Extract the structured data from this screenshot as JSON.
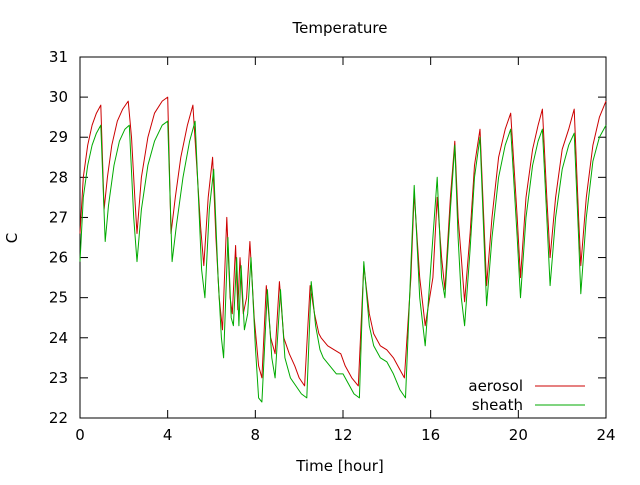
{
  "chart_data": {
    "type": "line",
    "title": "Temperature",
    "xlabel": "Time [hour]",
    "ylabel": "C",
    "xlim": [
      0,
      24
    ],
    "ylim": [
      22,
      31
    ],
    "xticks": [
      0,
      4,
      8,
      12,
      16,
      20,
      24
    ],
    "yticks": [
      22,
      23,
      24,
      25,
      26,
      27,
      28,
      29,
      30,
      31
    ],
    "grid": false,
    "legend_position": "bottom-right",
    "series": [
      {
        "name": "aerosol",
        "color": "#cc0000",
        "points": [
          [
            0.0,
            26.6
          ],
          [
            0.15,
            28.0
          ],
          [
            0.35,
            28.8
          ],
          [
            0.55,
            29.3
          ],
          [
            0.75,
            29.6
          ],
          [
            0.95,
            29.8
          ],
          [
            1.1,
            27.2
          ],
          [
            1.25,
            28.0
          ],
          [
            1.45,
            28.8
          ],
          [
            1.7,
            29.4
          ],
          [
            1.95,
            29.7
          ],
          [
            2.2,
            29.9
          ],
          [
            2.35,
            29.0
          ],
          [
            2.5,
            27.5
          ],
          [
            2.6,
            26.6
          ],
          [
            2.8,
            28.0
          ],
          [
            3.1,
            29.0
          ],
          [
            3.4,
            29.6
          ],
          [
            3.75,
            29.9
          ],
          [
            4.0,
            30.0
          ],
          [
            4.15,
            26.6
          ],
          [
            4.35,
            27.5
          ],
          [
            4.6,
            28.5
          ],
          [
            4.9,
            29.3
          ],
          [
            5.15,
            29.8
          ],
          [
            5.5,
            26.8
          ],
          [
            5.65,
            25.8
          ],
          [
            5.85,
            27.5
          ],
          [
            6.05,
            28.5
          ],
          [
            6.2,
            26.5
          ],
          [
            6.35,
            25.0
          ],
          [
            6.5,
            24.2
          ],
          [
            6.7,
            27.0
          ],
          [
            6.85,
            25.0
          ],
          [
            6.95,
            24.6
          ],
          [
            7.1,
            26.3
          ],
          [
            7.2,
            24.7
          ],
          [
            7.3,
            26.0
          ],
          [
            7.45,
            24.6
          ],
          [
            7.6,
            25.0
          ],
          [
            7.75,
            26.4
          ],
          [
            7.95,
            24.5
          ],
          [
            8.15,
            23.3
          ],
          [
            8.3,
            23.0
          ],
          [
            8.5,
            25.3
          ],
          [
            8.7,
            24.0
          ],
          [
            8.9,
            23.6
          ],
          [
            9.1,
            25.4
          ],
          [
            9.3,
            24.0
          ],
          [
            9.55,
            23.6
          ],
          [
            9.8,
            23.3
          ],
          [
            10.0,
            23.0
          ],
          [
            10.25,
            22.8
          ],
          [
            10.5,
            25.3
          ],
          [
            10.7,
            24.6
          ],
          [
            10.9,
            24.1
          ],
          [
            11.0,
            24.0
          ],
          [
            11.3,
            23.8
          ],
          [
            11.6,
            23.7
          ],
          [
            11.9,
            23.6
          ],
          [
            12.1,
            23.3
          ],
          [
            12.4,
            23.0
          ],
          [
            12.7,
            22.8
          ],
          [
            12.95,
            25.8
          ],
          [
            13.2,
            24.6
          ],
          [
            13.4,
            24.1
          ],
          [
            13.7,
            23.8
          ],
          [
            14.0,
            23.7
          ],
          [
            14.3,
            23.5
          ],
          [
            14.6,
            23.2
          ],
          [
            14.8,
            23.0
          ],
          [
            15.1,
            25.5
          ],
          [
            15.25,
            27.6
          ],
          [
            15.5,
            25.5
          ],
          [
            15.75,
            24.3
          ],
          [
            16.1,
            25.5
          ],
          [
            16.3,
            27.5
          ],
          [
            16.5,
            26.0
          ],
          [
            16.65,
            25.2
          ],
          [
            16.9,
            27.5
          ],
          [
            17.1,
            28.9
          ],
          [
            17.25,
            27.0
          ],
          [
            17.4,
            26.0
          ],
          [
            17.55,
            24.9
          ],
          [
            17.8,
            26.6
          ],
          [
            18.0,
            28.3
          ],
          [
            18.25,
            29.2
          ],
          [
            18.55,
            25.3
          ],
          [
            18.8,
            27.0
          ],
          [
            19.1,
            28.5
          ],
          [
            19.4,
            29.2
          ],
          [
            19.65,
            29.6
          ],
          [
            19.95,
            27.0
          ],
          [
            20.1,
            25.5
          ],
          [
            20.35,
            27.5
          ],
          [
            20.65,
            28.7
          ],
          [
            20.9,
            29.3
          ],
          [
            21.1,
            29.7
          ],
          [
            21.3,
            27.5
          ],
          [
            21.45,
            26.0
          ],
          [
            21.7,
            27.5
          ],
          [
            22.0,
            28.7
          ],
          [
            22.3,
            29.2
          ],
          [
            22.55,
            29.7
          ],
          [
            22.75,
            27.0
          ],
          [
            22.85,
            25.8
          ],
          [
            23.1,
            27.5
          ],
          [
            23.4,
            28.8
          ],
          [
            23.7,
            29.5
          ],
          [
            24.0,
            29.9
          ]
        ]
      },
      {
        "name": "sheath",
        "color": "#00aa00",
        "points": [
          [
            0.0,
            25.9
          ],
          [
            0.15,
            27.5
          ],
          [
            0.35,
            28.3
          ],
          [
            0.55,
            28.8
          ],
          [
            0.75,
            29.1
          ],
          [
            0.95,
            29.3
          ],
          [
            1.15,
            26.4
          ],
          [
            1.3,
            27.3
          ],
          [
            1.55,
            28.3
          ],
          [
            1.8,
            28.9
          ],
          [
            2.05,
            29.2
          ],
          [
            2.25,
            29.3
          ],
          [
            2.45,
            27.0
          ],
          [
            2.6,
            25.9
          ],
          [
            2.8,
            27.2
          ],
          [
            3.1,
            28.3
          ],
          [
            3.4,
            28.9
          ],
          [
            3.75,
            29.3
          ],
          [
            4.0,
            29.4
          ],
          [
            4.2,
            25.9
          ],
          [
            4.4,
            26.8
          ],
          [
            4.7,
            28.0
          ],
          [
            5.0,
            28.9
          ],
          [
            5.25,
            29.4
          ],
          [
            5.55,
            25.7
          ],
          [
            5.7,
            25.0
          ],
          [
            5.9,
            27.2
          ],
          [
            6.1,
            28.2
          ],
          [
            6.3,
            25.5
          ],
          [
            6.45,
            24.0
          ],
          [
            6.55,
            23.5
          ],
          [
            6.75,
            26.5
          ],
          [
            6.9,
            24.5
          ],
          [
            7.0,
            24.3
          ],
          [
            7.15,
            26.0
          ],
          [
            7.25,
            24.3
          ],
          [
            7.35,
            25.8
          ],
          [
            7.5,
            24.2
          ],
          [
            7.65,
            24.6
          ],
          [
            7.8,
            26.0
          ],
          [
            8.0,
            23.8
          ],
          [
            8.15,
            22.5
          ],
          [
            8.3,
            22.4
          ],
          [
            8.55,
            25.2
          ],
          [
            8.75,
            23.5
          ],
          [
            8.9,
            23.0
          ],
          [
            9.15,
            25.2
          ],
          [
            9.35,
            23.5
          ],
          [
            9.6,
            23.0
          ],
          [
            9.85,
            22.8
          ],
          [
            10.1,
            22.6
          ],
          [
            10.35,
            22.5
          ],
          [
            10.55,
            25.4
          ],
          [
            10.75,
            24.3
          ],
          [
            10.95,
            23.7
          ],
          [
            11.1,
            23.5
          ],
          [
            11.4,
            23.3
          ],
          [
            11.7,
            23.1
          ],
          [
            12.0,
            23.1
          ],
          [
            12.2,
            22.9
          ],
          [
            12.5,
            22.6
          ],
          [
            12.75,
            22.5
          ],
          [
            12.95,
            25.9
          ],
          [
            13.2,
            24.3
          ],
          [
            13.4,
            23.8
          ],
          [
            13.7,
            23.5
          ],
          [
            14.0,
            23.4
          ],
          [
            14.3,
            23.1
          ],
          [
            14.6,
            22.7
          ],
          [
            14.85,
            22.5
          ],
          [
            15.1,
            25.8
          ],
          [
            15.25,
            27.8
          ],
          [
            15.5,
            25.0
          ],
          [
            15.75,
            23.8
          ],
          [
            16.1,
            26.5
          ],
          [
            16.3,
            28.0
          ],
          [
            16.5,
            25.5
          ],
          [
            16.65,
            25.0
          ],
          [
            16.9,
            27.2
          ],
          [
            17.1,
            28.8
          ],
          [
            17.25,
            26.5
          ],
          [
            17.4,
            25.0
          ],
          [
            17.55,
            24.3
          ],
          [
            17.8,
            26.2
          ],
          [
            18.0,
            28.0
          ],
          [
            18.25,
            29.0
          ],
          [
            18.55,
            24.8
          ],
          [
            18.8,
            26.5
          ],
          [
            19.1,
            28.0
          ],
          [
            19.4,
            28.8
          ],
          [
            19.65,
            29.2
          ],
          [
            19.95,
            26.5
          ],
          [
            20.1,
            25.0
          ],
          [
            20.35,
            27.0
          ],
          [
            20.65,
            28.3
          ],
          [
            20.9,
            28.9
          ],
          [
            21.1,
            29.2
          ],
          [
            21.3,
            27.0
          ],
          [
            21.45,
            25.3
          ],
          [
            21.7,
            27.0
          ],
          [
            22.0,
            28.2
          ],
          [
            22.3,
            28.8
          ],
          [
            22.55,
            29.1
          ],
          [
            22.75,
            26.5
          ],
          [
            22.85,
            25.1
          ],
          [
            23.1,
            27.0
          ],
          [
            23.4,
            28.4
          ],
          [
            23.7,
            29.0
          ],
          [
            24.0,
            29.3
          ]
        ]
      }
    ]
  }
}
